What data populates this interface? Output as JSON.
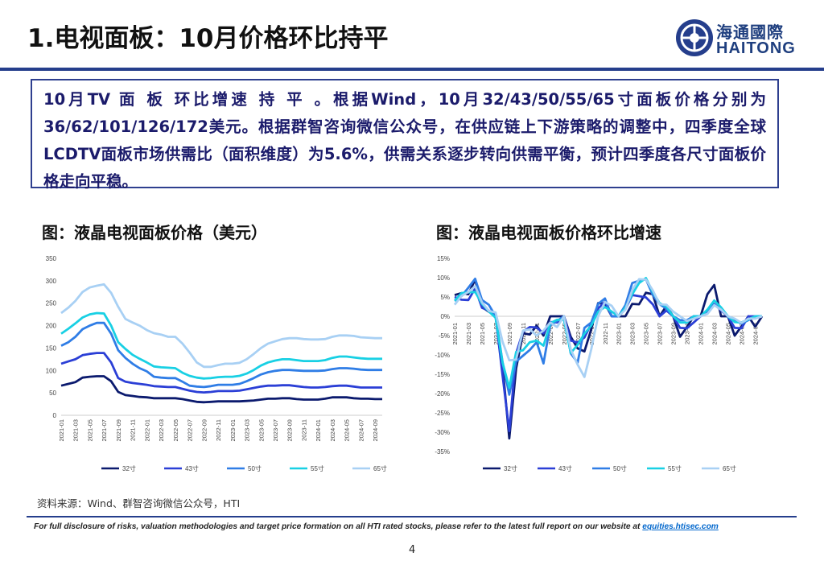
{
  "header": {
    "title": "1.电视面板：10月价格环比持平",
    "logo_cn": "海通國際",
    "logo_en": "HAITONG"
  },
  "summary": "10月TV 面 板 环比增速 持 平 。根据Wind，10月32/43/50/55/65寸面板价格分别为36/62/101/126/172美元。根据群智咨询微信公众号，在供应链上下游策略的调整中，四季度全球LCDTV面板市场供需比（面积维度）为5.6%，供需关系逐步转向供需平衡，预计四季度各尺寸面板价格走向平稳。",
  "source": "资料来源：Wind、群智咨询微信公众号，HTI",
  "disclaimer": {
    "text": "For full disclosure of risks, valuation methodologies and target price formation on all HTI rated stocks, please refer to the latest full report on our website at ",
    "link": "equities.htisec.com"
  },
  "page_number": "4",
  "colors": {
    "brand": "#253e8c",
    "s32": "#0b1a6e",
    "s43": "#2b3fd6",
    "s50": "#2f7de6",
    "s55": "#18d0e4",
    "s65": "#a8d0f4"
  },
  "chart_data": [
    {
      "type": "line",
      "title": "图：液晶电视面板价格（美元）",
      "ylim": [
        0,
        350
      ],
      "yticks": [
        0,
        50,
        100,
        150,
        200,
        250,
        300,
        350
      ],
      "x": [
        "2021-01",
        "2021-02",
        "2021-03",
        "2021-04",
        "2021-05",
        "2021-06",
        "2021-07",
        "2021-08",
        "2021-09",
        "2021-10",
        "2021-11",
        "2021-12",
        "2022-01",
        "2022-02",
        "2022-03",
        "2022-04",
        "2022-05",
        "2022-06",
        "2022-07",
        "2022-08",
        "2022-09",
        "2022-10",
        "2022-11",
        "2022-12",
        "2023-01",
        "2023-02",
        "2023-03",
        "2023-04",
        "2023-05",
        "2023-06",
        "2023-07",
        "2023-08",
        "2023-09",
        "2023-10",
        "2023-11",
        "2023-12",
        "2024-01",
        "2024-02",
        "2024-03",
        "2024-04",
        "2024-05",
        "2024-06",
        "2024-07",
        "2024-08",
        "2024-09",
        "2024-10"
      ],
      "xtick_labels": [
        "2021-01",
        "2021-03",
        "2021-05",
        "2021-07",
        "2021-09",
        "2021-11",
        "2022-01",
        "2022-03",
        "2022-05",
        "2022-07",
        "2022-09",
        "2022-11",
        "2023-01",
        "2023-03",
        "2023-05",
        "2023-07",
        "2023-09",
        "2023-11",
        "2024-01",
        "2024-03",
        "2024-05",
        "2024-07",
        "2024-09"
      ],
      "legend_position": "bottom",
      "series": [
        {
          "name": "32寸",
          "values": [
            66,
            70,
            74,
            84,
            86,
            87,
            87,
            76,
            52,
            45,
            43,
            41,
            40,
            38,
            38,
            38,
            38,
            36,
            33,
            30,
            29,
            30,
            31,
            31,
            31,
            31,
            32,
            33,
            35,
            37,
            37,
            38,
            38,
            36,
            35,
            35,
            35,
            37,
            40,
            40,
            40,
            38,
            37,
            37,
            36,
            36
          ]
        },
        {
          "name": "43寸",
          "values": [
            115,
            120,
            125,
            134,
            137,
            139,
            139,
            118,
            83,
            75,
            72,
            70,
            68,
            65,
            64,
            63,
            63,
            59,
            55,
            52,
            51,
            52,
            54,
            54,
            54,
            55,
            58,
            61,
            64,
            66,
            66,
            67,
            67,
            65,
            63,
            62,
            62,
            63,
            65,
            66,
            66,
            64,
            62,
            62,
            62,
            62
          ]
        },
        {
          "name": "50寸",
          "values": [
            155,
            163,
            175,
            192,
            200,
            206,
            206,
            182,
            145,
            128,
            115,
            105,
            98,
            86,
            84,
            83,
            83,
            75,
            66,
            64,
            63,
            65,
            68,
            68,
            68,
            70,
            76,
            83,
            91,
            96,
            99,
            101,
            101,
            100,
            99,
            99,
            99,
            100,
            103,
            105,
            105,
            104,
            102,
            101,
            101,
            101
          ]
        },
        {
          "name": "55寸",
          "values": [
            182,
            193,
            205,
            218,
            225,
            228,
            227,
            200,
            163,
            148,
            135,
            126,
            118,
            109,
            107,
            106,
            105,
            95,
            88,
            84,
            82,
            83,
            85,
            86,
            86,
            88,
            93,
            101,
            111,
            118,
            122,
            125,
            125,
            123,
            121,
            121,
            121,
            123,
            128,
            131,
            131,
            129,
            127,
            126,
            126,
            126
          ]
        },
        {
          "name": "65寸",
          "values": [
            228,
            240,
            255,
            275,
            285,
            289,
            292,
            273,
            242,
            215,
            207,
            200,
            190,
            183,
            180,
            175,
            175,
            160,
            140,
            118,
            108,
            108,
            112,
            115,
            115,
            117,
            125,
            137,
            150,
            160,
            165,
            170,
            172,
            172,
            170,
            169,
            169,
            170,
            175,
            178,
            178,
            177,
            174,
            173,
            172,
            172
          ]
        }
      ]
    },
    {
      "type": "line",
      "title": "图：液晶电视面板价格环比增速",
      "ylim": [
        -35,
        15
      ],
      "yticks": [
        "15%",
        "10%",
        "5%",
        "0%",
        "-5%",
        "-10%",
        "-15%",
        "-20%",
        "-25%",
        "-30%",
        "-35%"
      ],
      "ytick_values": [
        15,
        10,
        5,
        0,
        -5,
        -10,
        -15,
        -20,
        -25,
        -30,
        -35
      ],
      "xtick_labels": [
        "2021-01",
        "2021-03",
        "2021-05",
        "2021-07",
        "2021-09",
        "2021-11",
        "2022-01",
        "2022-03",
        "2022-05",
        "2022-07",
        "2022-09",
        "2022-11",
        "2023-01",
        "2023-03",
        "2023-05",
        "2023-07",
        "2023-09",
        "2023-11",
        "2024-01",
        "2024-03",
        "2024-05",
        "2024-07",
        "2024-09"
      ],
      "legend_position": "bottom",
      "series": [
        {
          "name": "32寸",
          "values": [
            5.5,
            6,
            5.7,
            9.5,
            2.4,
            1.2,
            0,
            -12.6,
            -31.6,
            -13.5,
            -4.4,
            -4.7,
            -2.4,
            -5,
            0,
            0,
            0,
            -5.3,
            -8.3,
            -9.1,
            -3.3,
            3.4,
            3.3,
            0,
            0,
            0,
            3.2,
            3.1,
            6.1,
            5.7,
            0,
            2.7,
            0,
            -5.3,
            -2.8,
            0,
            0,
            5.7,
            8.1,
            0,
            0,
            -5,
            -2.6,
            0,
            -2.7,
            0
          ]
        },
        {
          "name": "43寸",
          "values": [
            5,
            4.3,
            4.2,
            7.2,
            2.2,
            1.5,
            0,
            -15.1,
            -29.7,
            -9.6,
            -4,
            -2.8,
            -2.9,
            -4.4,
            -1.5,
            -1.6,
            0,
            -6.3,
            -6.8,
            -5.5,
            -1.9,
            2,
            3.8,
            0,
            0,
            1.9,
            5.5,
            5.2,
            4.9,
            3.1,
            0,
            1.5,
            0,
            -3,
            -3.1,
            -1.6,
            0,
            1.6,
            3.2,
            1.5,
            0,
            -3,
            -3.1,
            0,
            0,
            0
          ]
        },
        {
          "name": "50寸",
          "values": [
            4,
            5.2,
            7.4,
            9.7,
            4.2,
            3,
            0,
            -11.7,
            -20.3,
            -11.7,
            -10.2,
            -8.7,
            -6.7,
            -12.2,
            -2.3,
            -1.2,
            0,
            -9.6,
            -12,
            -3,
            -1.6,
            3.2,
            4.6,
            0,
            0,
            2.9,
            8.6,
            9.2,
            9.6,
            5.5,
            3.1,
            2,
            0,
            -1,
            -1,
            0,
            0,
            1,
            3,
            1.9,
            0,
            -1,
            -1.9,
            -1,
            0,
            0
          ]
        },
        {
          "name": "55寸",
          "values": [
            4,
            6,
            6.2,
            6.3,
            3.2,
            1.3,
            -0.4,
            -11.9,
            -18.5,
            -9.2,
            -8.8,
            -6.7,
            -6.3,
            -7.6,
            -1.8,
            -0.9,
            -0.9,
            -9.5,
            -7.4,
            -4.5,
            -2.4,
            1.2,
            2.4,
            1.2,
            0,
            2.3,
            5.7,
            8.6,
            9.9,
            6.3,
            3.4,
            2.5,
            0,
            -1.6,
            -1.6,
            0,
            0,
            1.7,
            4.1,
            2.3,
            0,
            -1.5,
            -1.6,
            -0.8,
            0,
            0
          ]
        },
        {
          "name": "65寸",
          "values": [
            3,
            5.3,
            6.3,
            7.8,
            3.6,
            1.4,
            1,
            -6.5,
            -11.4,
            -11.2,
            -3.7,
            -3.4,
            -5,
            -3.7,
            -1.6,
            -2.8,
            0,
            -8.6,
            -12.5,
            -15.7,
            -8.5,
            0,
            3.7,
            2.7,
            0,
            1.7,
            6.8,
            9.6,
            9.5,
            6.7,
            3.1,
            3,
            1.2,
            0,
            -1.2,
            -0.6,
            0,
            0.6,
            2.9,
            1.7,
            0,
            -0.6,
            -1.7,
            -0.6,
            -0.6,
            0
          ]
        }
      ]
    }
  ]
}
